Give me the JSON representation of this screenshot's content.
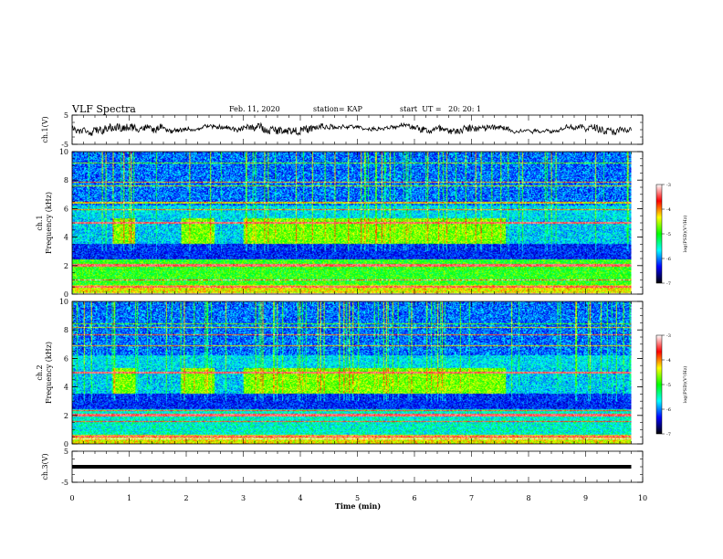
{
  "header": {
    "title": "VLF Spectra",
    "date": "Feb. 11, 2020",
    "station": "station= KAP",
    "start_ut": "start  UT =   20: 20: 1"
  },
  "chart_data": [
    {
      "type": "line",
      "name": "ch1-waveform",
      "ylabel": "ch.1(V)",
      "ylim": [
        -5,
        5
      ],
      "yticks": [
        "5",
        "-5"
      ],
      "x_range_min": [
        0,
        9.8
      ],
      "approx_level": 0.5
    },
    {
      "type": "heatmap",
      "name": "ch1-spectrogram",
      "ylabel_line1": "ch.1",
      "ylabel_line2": "Frequency  (kHz)",
      "ylim": [
        0,
        10
      ],
      "yticks": [
        "0",
        "2",
        "4",
        "6",
        "8",
        "10"
      ],
      "enhanced_intervals_min": [
        [
          0.7,
          1.1
        ],
        [
          1.9,
          2.5
        ],
        [
          3.0,
          7.6
        ]
      ],
      "colorbar": {
        "label": "log(PSD)(V²/Hz)",
        "range": [
          -7,
          -3
        ],
        "ticks": [
          "-3",
          "-4",
          "-5",
          "-6",
          "-7"
        ],
        "colors": [
          "#ffffff",
          "#ff0000",
          "#ffff00",
          "#00ff00",
          "#00ffff",
          "#0000ff",
          "#000000"
        ]
      }
    },
    {
      "type": "heatmap",
      "name": "ch2-spectrogram",
      "ylabel_line1": "ch.2",
      "ylabel_line2": "Frequency  (kHz)",
      "ylim": [
        0,
        10
      ],
      "yticks": [
        "0",
        "2",
        "4",
        "6",
        "8",
        "10"
      ],
      "enhanced_intervals_min": [
        [
          0.7,
          1.1
        ],
        [
          1.9,
          2.5
        ],
        [
          3.0,
          7.6
        ]
      ],
      "colorbar": {
        "label": "log(PSD)(V²/Hz)",
        "range": [
          -7,
          -3
        ],
        "ticks": [
          "-3",
          "-4",
          "-5",
          "-6",
          "-7"
        ],
        "colors": [
          "#ffffff",
          "#ff0000",
          "#ffff00",
          "#00ff00",
          "#00ffff",
          "#0000ff",
          "#000000"
        ]
      }
    },
    {
      "type": "line",
      "name": "ch3-waveform",
      "ylabel": "ch.3(V)",
      "ylim": [
        -5,
        5
      ],
      "yticks": [
        "5",
        "-5"
      ],
      "x_range_min": [
        0,
        9.8
      ],
      "approx_level": 0
    }
  ],
  "x_axis": {
    "label": "Time  (min)",
    "range": [
      0,
      10
    ],
    "ticks": [
      "0",
      "1",
      "2",
      "3",
      "4",
      "5",
      "6",
      "7",
      "8",
      "9",
      "10"
    ]
  }
}
